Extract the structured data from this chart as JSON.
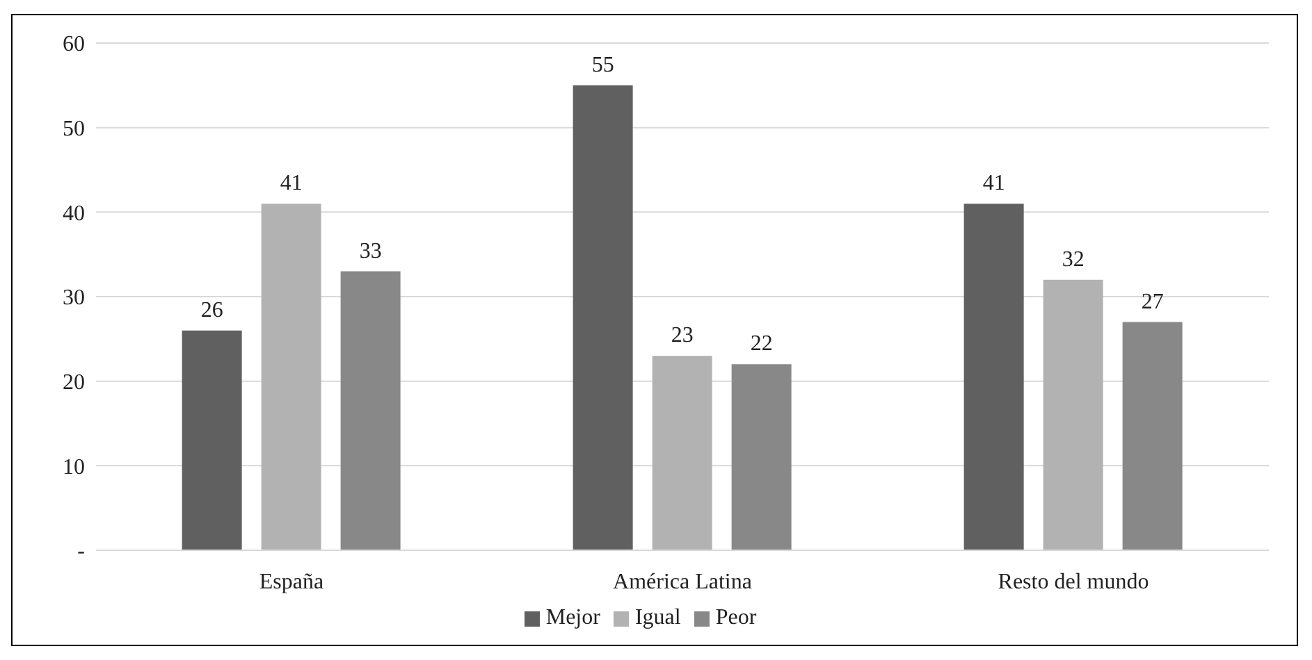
{
  "chart_data": {
    "type": "bar",
    "categories": [
      "España",
      "América Latina",
      "Resto del mundo"
    ],
    "series": [
      {
        "name": "Mejor",
        "color": "#606060",
        "values": [
          26,
          55,
          41
        ]
      },
      {
        "name": "Igual",
        "color": "#b2b2b2",
        "values": [
          41,
          23,
          32
        ]
      },
      {
        "name": "Peor",
        "color": "#888888",
        "values": [
          33,
          22,
          27
        ]
      }
    ],
    "ylim": [
      0,
      60
    ],
    "yticks": [
      {
        "value": 0,
        "label": "-"
      },
      10,
      20,
      30,
      40,
      50,
      60
    ],
    "grid": "y",
    "legend": "bottom",
    "data_labels": true
  }
}
